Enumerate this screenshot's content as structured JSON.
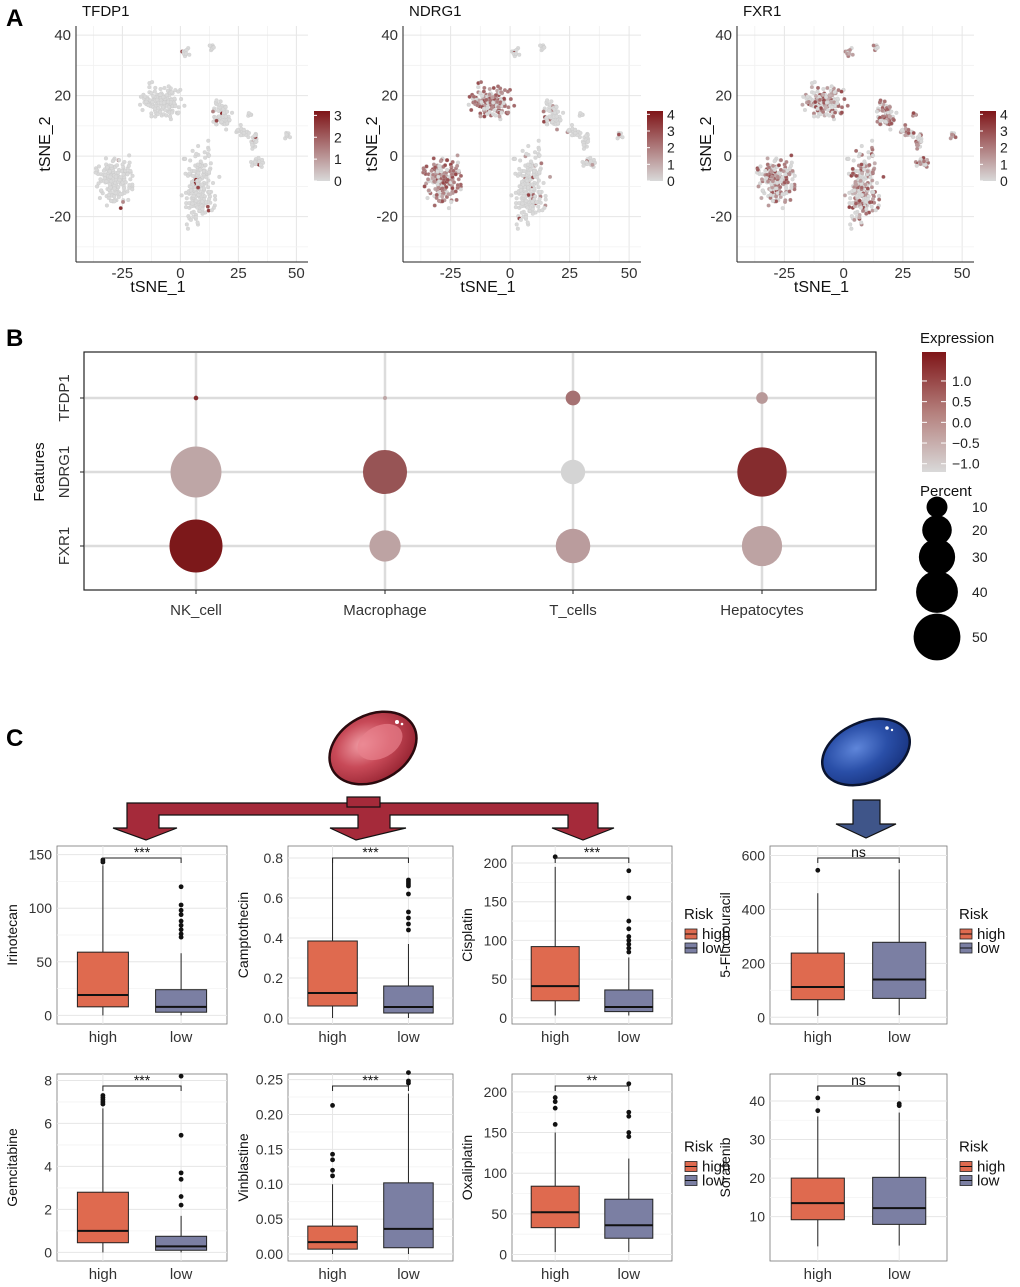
{
  "panel_labels": [
    "A",
    "B",
    "C"
  ],
  "colors": {
    "low_expr": "#d9d9d9",
    "high_expr": "#7f1518",
    "box_high": "#df6a4f",
    "box_low": "#7b7fa3",
    "red_arrow": "#a52a3a",
    "blue_arrow": "#3f5589",
    "red_pill": "#b3303f",
    "blue_pill": "#2a4fa8",
    "grid": "#e6e6e6"
  },
  "chart_data": [
    {
      "type": "scatter",
      "panel": "A",
      "title": "TFDP1",
      "xlabel": "tSNE_1",
      "ylabel": "tSNE_2",
      "xlim": [
        -45,
        55
      ],
      "ylim": [
        -35,
        43
      ],
      "xticks": [
        -25,
        0,
        25,
        50
      ],
      "yticks": [
        -20,
        0,
        20,
        40
      ],
      "legend": {
        "ticks": [
          0,
          1,
          2,
          3
        ],
        "min": 0,
        "max": 3.2
      },
      "pattern": "sparse"
    },
    {
      "type": "scatter",
      "panel": "A",
      "title": "NDRG1",
      "xlabel": "tSNE_1",
      "ylabel": "tSNE_2",
      "xlim": [
        -45,
        55
      ],
      "ylim": [
        -35,
        43
      ],
      "xticks": [
        -25,
        0,
        25,
        50
      ],
      "yticks": [
        -20,
        0,
        20,
        40
      ],
      "legend": {
        "ticks": [
          0,
          1,
          2,
          3,
          4
        ],
        "min": 0,
        "max": 4.2
      },
      "pattern": "hep"
    },
    {
      "type": "scatter",
      "panel": "A",
      "title": "FXR1",
      "xlabel": "tSNE_1",
      "ylabel": "tSNE_2",
      "xlim": [
        -45,
        55
      ],
      "ylim": [
        -35,
        43
      ],
      "xticks": [
        -25,
        0,
        25,
        50
      ],
      "yticks": [
        -20,
        0,
        20,
        40
      ],
      "legend": {
        "ticks": [
          0,
          1,
          2,
          3,
          4
        ],
        "min": 0,
        "max": 4.2
      },
      "pattern": "broad"
    },
    {
      "type": "dot",
      "panel": "B",
      "ylabel": "Features",
      "features": [
        "TFDP1",
        "NDRG1",
        "FXR1"
      ],
      "cell_types": [
        "NK_cell",
        "Macrophage",
        "T_cells",
        "Hepatocytes"
      ],
      "percent": [
        [
          0.4,
          0.3,
          4,
          2.5
        ],
        [
          48,
          36,
          11,
          45
        ],
        [
          52,
          18,
          22,
          30
        ]
      ],
      "expression": [
        [
          1.4,
          -0.5,
          0.3,
          -0.3
        ],
        [
          -0.5,
          0.75,
          -1.2,
          1.35
        ],
        [
          1.65,
          -0.45,
          -0.35,
          -0.45
        ]
      ],
      "color_legend": {
        "title": "Expression",
        "ticks": [
          1.0,
          0.5,
          0.0,
          -0.5,
          -1.0
        ],
        "labels": [
          "1.0",
          "0.5",
          "0.0",
          "−0.5",
          "−1.0"
        ],
        "range": [
          -1.2,
          1.7
        ]
      },
      "size_legend": {
        "title": "Percent",
        "values": [
          10,
          20,
          30,
          40,
          50
        ]
      }
    },
    {
      "type": "box",
      "panel": "C",
      "ylabel": "Irinotecan",
      "categories": [
        "high",
        "low"
      ],
      "ylim": [
        -8,
        158
      ],
      "yticks": [
        0,
        50,
        100,
        150
      ],
      "sig": "***",
      "series": [
        {
          "name": "high",
          "min": 0,
          "q1": 8,
          "median": 19,
          "q3": 59,
          "max": 140,
          "outliers": [
            145,
            143
          ]
        },
        {
          "name": "low",
          "min": 0,
          "q1": 3,
          "median": 8,
          "q3": 24,
          "max": 58,
          "outliers": [
            120,
            103,
            98,
            94,
            88,
            84,
            80,
            76,
            73
          ]
        }
      ]
    },
    {
      "type": "box",
      "panel": "C",
      "ylabel": "Camptothecin",
      "categories": [
        "high",
        "low"
      ],
      "ylim": [
        -0.03,
        0.86
      ],
      "yticks": [
        0.0,
        0.2,
        0.4,
        0.6,
        0.8
      ],
      "sig": "***",
      "series": [
        {
          "name": "high",
          "min": 0,
          "q1": 0.06,
          "median": 0.125,
          "q3": 0.385,
          "max": 0.8,
          "outliers": []
        },
        {
          "name": "low",
          "min": 0,
          "q1": 0.025,
          "median": 0.055,
          "q3": 0.16,
          "max": 0.37,
          "outliers": [
            0.69,
            0.68,
            0.67,
            0.66,
            0.62,
            0.53,
            0.5,
            0.47,
            0.44
          ]
        }
      ]
    },
    {
      "type": "box",
      "panel": "C",
      "ylabel": "Cisplatin",
      "categories": [
        "high",
        "low"
      ],
      "ylim": [
        -8,
        222
      ],
      "yticks": [
        0,
        50,
        100,
        150,
        200
      ],
      "sig": "***",
      "series": [
        {
          "name": "high",
          "min": 3,
          "q1": 22,
          "median": 41,
          "q3": 92,
          "max": 195,
          "outliers": [
            208
          ]
        },
        {
          "name": "low",
          "min": 3,
          "q1": 8,
          "median": 14,
          "q3": 36,
          "max": 78,
          "outliers": [
            190,
            155,
            125,
            115,
            105,
            100,
            95,
            90,
            85
          ]
        }
      ]
    },
    {
      "type": "box",
      "panel": "C",
      "ylabel": "5-Fluorouracil",
      "categories": [
        "high",
        "low"
      ],
      "ylim": [
        -25,
        635
      ],
      "yticks": [
        0,
        200,
        400,
        600
      ],
      "sig": "ns",
      "series": [
        {
          "name": "high",
          "min": 5,
          "q1": 65,
          "median": 112,
          "q3": 238,
          "max": 460,
          "outliers": [
            545
          ]
        },
        {
          "name": "low",
          "min": 8,
          "q1": 70,
          "median": 140,
          "q3": 278,
          "max": 548,
          "outliers": []
        }
      ]
    },
    {
      "type": "box",
      "panel": "C",
      "ylabel": "Gemcitabine",
      "categories": [
        "high",
        "low"
      ],
      "ylim": [
        -0.4,
        8.3
      ],
      "yticks": [
        0,
        2,
        4,
        6,
        8
      ],
      "sig": "***",
      "series": [
        {
          "name": "high",
          "min": 0,
          "q1": 0.45,
          "median": 1.0,
          "q3": 2.8,
          "max": 6.7,
          "outliers": [
            7.3,
            7.2,
            7.1,
            7.0,
            6.9
          ]
        },
        {
          "name": "low",
          "min": 0,
          "q1": 0.1,
          "median": 0.28,
          "q3": 0.75,
          "max": 1.7,
          "outliers": [
            8.2,
            5.45,
            3.7,
            3.4,
            2.6,
            2.2
          ]
        }
      ]
    },
    {
      "type": "box",
      "panel": "C",
      "ylabel": "Vinblastine",
      "categories": [
        "high",
        "low"
      ],
      "ylim": [
        -0.01,
        0.258
      ],
      "yticks": [
        0.0,
        0.05,
        0.1,
        0.15,
        0.2,
        0.25
      ],
      "sig": "***",
      "series": [
        {
          "name": "high",
          "min": 0,
          "q1": 0.007,
          "median": 0.017,
          "q3": 0.04,
          "max": 0.1,
          "outliers": [
            0.213,
            0.143,
            0.135,
            0.12,
            0.112
          ]
        },
        {
          "name": "low",
          "min": 0,
          "q1": 0.009,
          "median": 0.036,
          "q3": 0.102,
          "max": 0.23,
          "outliers": [
            0.26,
            0.248,
            0.245
          ]
        }
      ]
    },
    {
      "type": "box",
      "panel": "C",
      "ylabel": "Oxaliplatin",
      "categories": [
        "high",
        "low"
      ],
      "ylim": [
        -8,
        222
      ],
      "yticks": [
        0,
        50,
        100,
        150,
        200
      ],
      "sig": "**",
      "series": [
        {
          "name": "high",
          "min": 3,
          "q1": 33,
          "median": 52,
          "q3": 84,
          "max": 150,
          "outliers": [
            193,
            188,
            180,
            160
          ]
        },
        {
          "name": "low",
          "min": 3,
          "q1": 20,
          "median": 36,
          "q3": 68,
          "max": 118,
          "outliers": [
            210,
            175,
            170,
            150,
            145
          ]
        }
      ]
    },
    {
      "type": "box",
      "panel": "C",
      "ylabel": "Sorafenib",
      "categories": [
        "high",
        "low"
      ],
      "ylim": [
        -1.5,
        47
      ],
      "yticks": [
        10,
        20,
        30,
        40
      ],
      "sig": "ns",
      "series": [
        {
          "name": "high",
          "min": 2.3,
          "q1": 9.2,
          "median": 13.5,
          "q3": 20,
          "max": 36,
          "outliers": [
            40.8,
            37.5
          ]
        },
        {
          "name": "low",
          "min": 2.5,
          "q1": 8,
          "median": 12.2,
          "q3": 20.2,
          "max": 37,
          "outliers": [
            47,
            39.3,
            38.8
          ]
        }
      ]
    }
  ],
  "risk_legend": {
    "title": "Risk",
    "items": [
      "high",
      "low"
    ]
  }
}
